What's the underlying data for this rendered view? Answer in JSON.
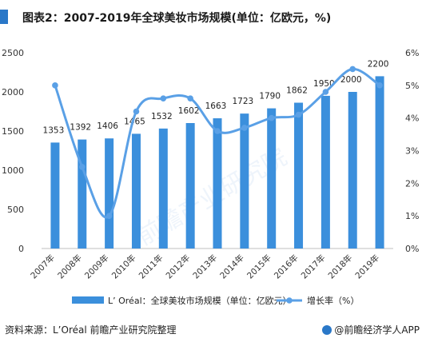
{
  "title": "图表2：2007-2019年全球美妆市场规模(单位：亿欧元，%)",
  "source": "资料来源：L’Oréal 前瞻产业研究院整理",
  "brand": "@前瞻经济学人APP",
  "watermark": "前瞻产业研究院",
  "colors": {
    "bar": "#3b8fdc",
    "line": "#5aa0e6",
    "title_bar": "#2a78c8"
  },
  "chart_data": {
    "type": "bar",
    "categories": [
      "2007年",
      "2008年",
      "2009年",
      "2010年",
      "2011年",
      "2012年",
      "2013年",
      "2014年",
      "2015年",
      "2016年",
      "2017年",
      "2018年",
      "2019年"
    ],
    "series": [
      {
        "name": "L’ Oréal：全球美妆市场规模（单位：亿欧元）",
        "type": "bar",
        "axis": "left",
        "values": [
          1353,
          1392,
          1406,
          1465,
          1532,
          1602,
          1663,
          1723,
          1790,
          1862,
          1950,
          2000,
          2200
        ]
      },
      {
        "name": "增长率（%）",
        "type": "line",
        "axis": "right",
        "values": [
          5.0,
          2.5,
          1.0,
          4.2,
          4.6,
          4.6,
          3.6,
          3.7,
          4.0,
          4.1,
          4.8,
          5.5,
          5.0
        ]
      }
    ],
    "y_left": {
      "min": 0,
      "max": 2500,
      "ticks": [
        "0",
        "500",
        "1000",
        "1500",
        "2000",
        "2500"
      ]
    },
    "y_right": {
      "min": 0,
      "max": 6,
      "ticks": [
        "0%",
        "1%",
        "2%",
        "3%",
        "4%",
        "5%",
        "6%"
      ]
    },
    "legend_position": "bottom",
    "grid": false
  }
}
